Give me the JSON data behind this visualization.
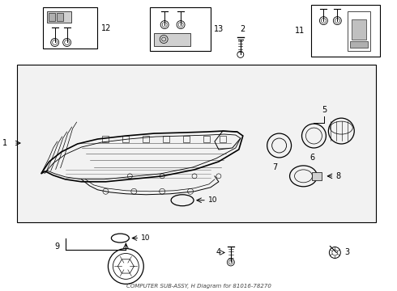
{
  "subtitle": "COMPUTER SUB-ASSY, H Diagram for 81016-78270",
  "bg_color": "#f0f0f0",
  "white": "#ffffff",
  "black": "#000000",
  "gray": "#cccccc",
  "light_gray": "#e8e8e8"
}
